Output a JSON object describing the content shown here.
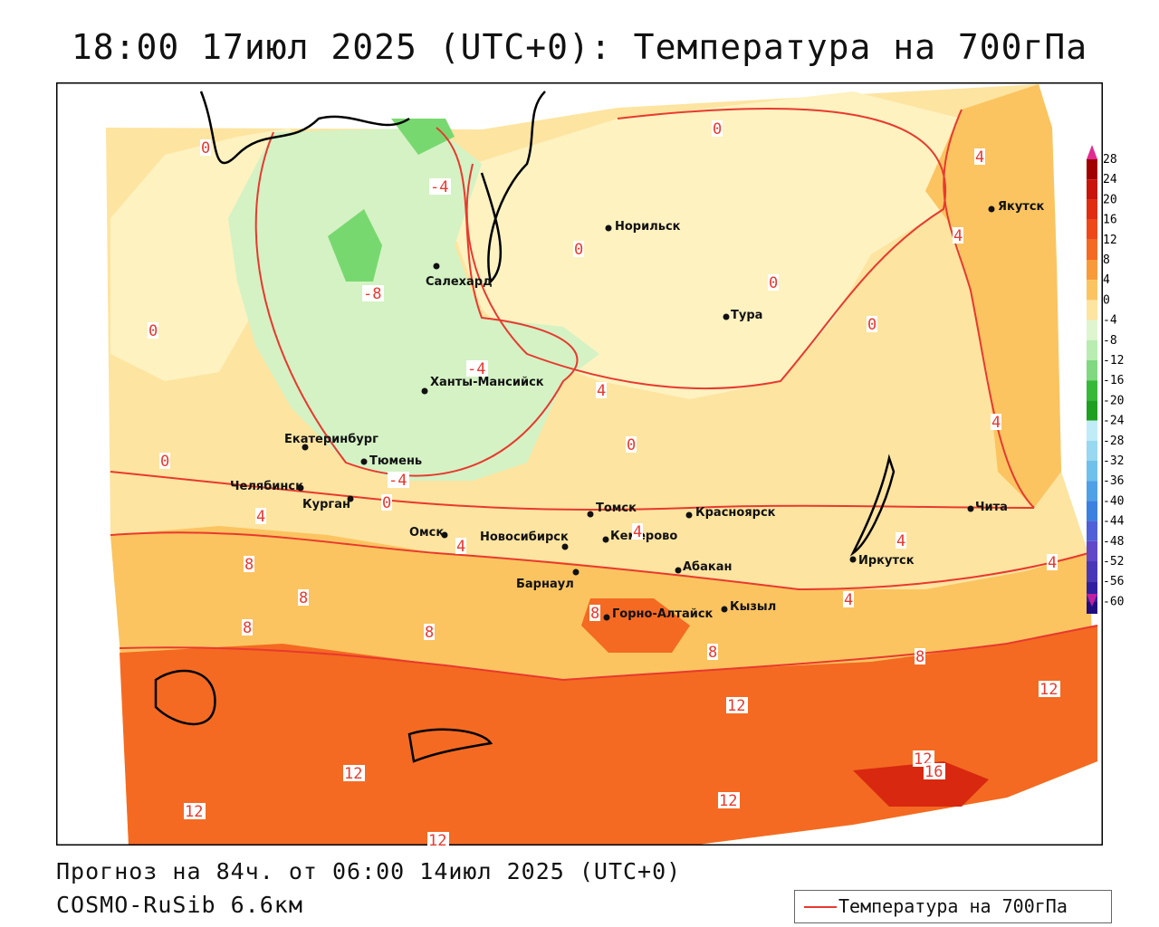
{
  "title": "18:00 17июл 2025 (UTC+0): Температура на 700гПа",
  "footer": {
    "forecast": "Прогноз на 84ч. от 06:00 14июл 2025 (UTC+0)",
    "model": "COSMO-RuSib 6.6км"
  },
  "legend": {
    "label": "Температура на 700гПа",
    "color": "#e8392f"
  },
  "colorbar": {
    "labels": [
      "28",
      "24",
      "20",
      "16",
      "12",
      "8",
      "4",
      "0",
      "-4",
      "-8",
      "-12",
      "-16",
      "-20",
      "-24",
      "-28",
      "-32",
      "-36",
      "-40",
      "-44",
      "-48",
      "-52",
      "-56",
      "-60"
    ],
    "colors": [
      "#a00000",
      "#c8140a",
      "#e02c10",
      "#ee4818",
      "#f46a22",
      "#f89a3a",
      "#fbc460",
      "#fde4a0",
      "#dff5d0",
      "#b8ecb0",
      "#80d880",
      "#38b838",
      "#20a020",
      "#c0ecf8",
      "#98d8f0",
      "#70c0ec",
      "#50a0e8",
      "#3c80e0",
      "#5060d8",
      "#6048c8",
      "#4838b8",
      "#3020a0",
      "#200e80"
    ]
  },
  "cities": [
    {
      "name": "Норильск"
    },
    {
      "name": "Якутск"
    },
    {
      "name": "Салехард"
    },
    {
      "name": "Тура"
    },
    {
      "name": "Ханты-Мансийск"
    },
    {
      "name": "Екатеринбург"
    },
    {
      "name": "Тюмень"
    },
    {
      "name": "Челябинск"
    },
    {
      "name": "Курган"
    },
    {
      "name": "Томск"
    },
    {
      "name": "Красноярск"
    },
    {
      "name": "Чита"
    },
    {
      "name": "Омск"
    },
    {
      "name": "Новосибирск"
    },
    {
      "name": "Кемерово"
    },
    {
      "name": "Абакан"
    },
    {
      "name": "Иркутск"
    },
    {
      "name": "Барнаул"
    },
    {
      "name": "Горно-Алтайск"
    },
    {
      "name": "Кызыл"
    }
  ],
  "isoline_labels": [
    "0",
    "4",
    "-4",
    "-8",
    "-4",
    "4",
    "0",
    "0",
    "0",
    "0",
    "4",
    "4",
    "0",
    "-4",
    "0",
    "4",
    "4",
    "4",
    "4",
    "8",
    "8",
    "8",
    "8",
    "8",
    "8",
    "12",
    "12",
    "12",
    "12",
    "12",
    "12",
    "16",
    "4",
    "0",
    "0",
    "4",
    "8",
    "12"
  ]
}
